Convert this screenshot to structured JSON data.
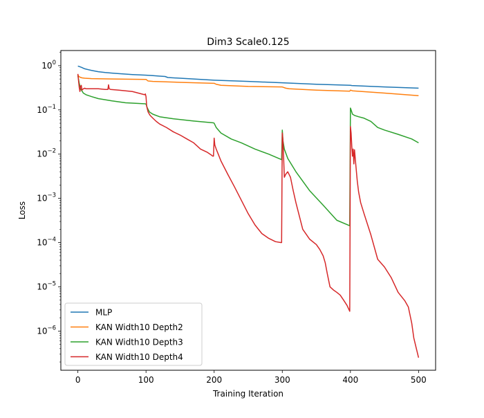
{
  "chart_data": {
    "type": "line",
    "title": "Dim3 Scale0.125",
    "xlabel": "Training Iteration",
    "ylabel": "Loss",
    "yscale": "log",
    "xlim": [
      -25,
      525
    ],
    "ylim": [
      1.3e-07,
      2.2
    ],
    "legend_position": "lower-left",
    "x_ticks": [
      {
        "value": 0,
        "label": "0"
      },
      {
        "value": 100,
        "label": "100"
      },
      {
        "value": 200,
        "label": "200"
      },
      {
        "value": 300,
        "label": "300"
      },
      {
        "value": 400,
        "label": "400"
      },
      {
        "value": 500,
        "label": "500"
      }
    ],
    "y_ticks": [
      {
        "value": 1e-06,
        "base": "10",
        "exp": "−6"
      },
      {
        "value": 1e-05,
        "base": "10",
        "exp": "−5"
      },
      {
        "value": 0.0001,
        "base": "10",
        "exp": "−4"
      },
      {
        "value": 0.001,
        "base": "10",
        "exp": "−3"
      },
      {
        "value": 0.01,
        "base": "10",
        "exp": "−2"
      },
      {
        "value": 0.1,
        "base": "10",
        "exp": "−1"
      },
      {
        "value": 1,
        "base": "10",
        "exp": "0"
      }
    ],
    "series": [
      {
        "name": "MLP",
        "color": "#1f77b4",
        "x": [
          0,
          5,
          10,
          20,
          30,
          40,
          50,
          60,
          80,
          100,
          110,
          120,
          128,
          132,
          150,
          200,
          250,
          300,
          350,
          400,
          402,
          450,
          500
        ],
        "y": [
          0.98,
          0.92,
          0.85,
          0.78,
          0.73,
          0.7,
          0.68,
          0.66,
          0.63,
          0.61,
          0.595,
          0.58,
          0.57,
          0.54,
          0.52,
          0.47,
          0.44,
          0.41,
          0.38,
          0.36,
          0.355,
          0.33,
          0.31
        ]
      },
      {
        "name": "KAN Width10 Depth2",
        "color": "#ff7f0e",
        "x": [
          0,
          1,
          3,
          6,
          10,
          20,
          50,
          99,
          100,
          103,
          110,
          150,
          199,
          200,
          203,
          210,
          250,
          299,
          300,
          305,
          310,
          350,
          399,
          400,
          403,
          410,
          450,
          500
        ],
        "y": [
          0.62,
          0.58,
          0.55,
          0.53,
          0.52,
          0.51,
          0.5,
          0.49,
          0.49,
          0.45,
          0.44,
          0.42,
          0.4,
          0.4,
          0.38,
          0.36,
          0.34,
          0.33,
          0.33,
          0.31,
          0.3,
          0.28,
          0.265,
          0.28,
          0.27,
          0.265,
          0.24,
          0.21
        ]
      },
      {
        "name": "KAN Width10 Depth3",
        "color": "#2ca02c",
        "x": [
          0,
          2,
          4,
          8,
          12,
          20,
          30,
          50,
          70,
          99,
          100,
          102,
          105,
          110,
          120,
          140,
          170,
          199,
          200,
          203,
          210,
          225,
          240,
          260,
          280,
          299,
          300,
          301,
          303,
          308,
          320,
          340,
          360,
          380,
          399,
          400,
          401,
          403,
          406,
          412,
          420,
          430,
          440,
          450,
          470,
          490,
          500
        ],
        "y": [
          0.6,
          0.4,
          0.3,
          0.24,
          0.22,
          0.2,
          0.18,
          0.16,
          0.145,
          0.137,
          0.135,
          0.11,
          0.09,
          0.08,
          0.07,
          0.063,
          0.056,
          0.051,
          0.05,
          0.04,
          0.03,
          0.022,
          0.018,
          0.013,
          0.01,
          0.0075,
          0.035,
          0.02,
          0.013,
          0.008,
          0.004,
          0.0015,
          0.0007,
          0.00032,
          0.00024,
          0.11,
          0.1,
          0.08,
          0.075,
          0.07,
          0.065,
          0.055,
          0.04,
          0.035,
          0.028,
          0.022,
          0.018
        ]
      },
      {
        "name": "KAN Width10 Depth4",
        "color": "#d62728",
        "x": [
          0,
          1,
          2,
          3,
          4,
          5,
          6,
          8,
          10,
          12,
          20,
          30,
          40,
          44,
          45,
          46,
          48,
          60,
          80,
          98,
          99,
          100,
          101,
          103,
          106,
          110,
          115,
          120,
          130,
          140,
          150,
          160,
          170,
          180,
          190,
          196,
          198,
          199,
          200,
          201,
          203,
          206,
          210,
          220,
          230,
          240,
          250,
          260,
          270,
          280,
          290,
          298,
          299,
          300,
          301,
          302,
          303,
          305,
          308,
          312,
          316,
          320,
          325,
          330,
          340,
          350,
          355,
          360,
          363,
          366,
          370,
          375,
          380,
          385,
          390,
          395,
          399,
          400,
          401,
          402,
          403,
          404,
          405,
          406,
          408,
          410,
          412,
          415,
          420,
          430,
          440,
          450,
          460,
          470,
          480,
          485,
          490,
          493,
          496,
          500
        ],
        "y": [
          0.65,
          0.45,
          0.32,
          0.26,
          0.34,
          0.36,
          0.28,
          0.3,
          0.31,
          0.3,
          0.3,
          0.3,
          0.29,
          0.29,
          0.37,
          0.3,
          0.29,
          0.28,
          0.26,
          0.22,
          0.23,
          0.2,
          0.12,
          0.09,
          0.075,
          0.065,
          0.055,
          0.048,
          0.04,
          0.032,
          0.027,
          0.022,
          0.018,
          0.013,
          0.011,
          0.0095,
          0.009,
          0.009,
          0.023,
          0.016,
          0.013,
          0.01,
          0.007,
          0.0035,
          0.0018,
          0.0009,
          0.00045,
          0.00025,
          0.00016,
          0.000125,
          0.000105,
          0.0001,
          0.0001,
          0.03,
          0.02,
          0.008,
          0.003,
          0.0035,
          0.004,
          0.003,
          0.0015,
          0.0008,
          0.0004,
          0.0002,
          0.00012,
          9e-05,
          7e-05,
          5e-05,
          3.5e-05,
          2e-05,
          1e-05,
          8.5e-06,
          7.5e-06,
          6.5e-06,
          5e-06,
          3.8e-06,
          2.8e-06,
          0.042,
          0.03,
          0.015,
          0.009,
          0.013,
          0.006,
          0.0125,
          0.0055,
          0.0025,
          0.0014,
          0.0008,
          0.00045,
          0.00015,
          4.2e-05,
          2.8e-05,
          1.6e-05,
          7.5e-06,
          4.8e-06,
          3.5e-06,
          1.5e-06,
          7e-07,
          4.5e-07,
          2.5e-07
        ]
      }
    ]
  }
}
